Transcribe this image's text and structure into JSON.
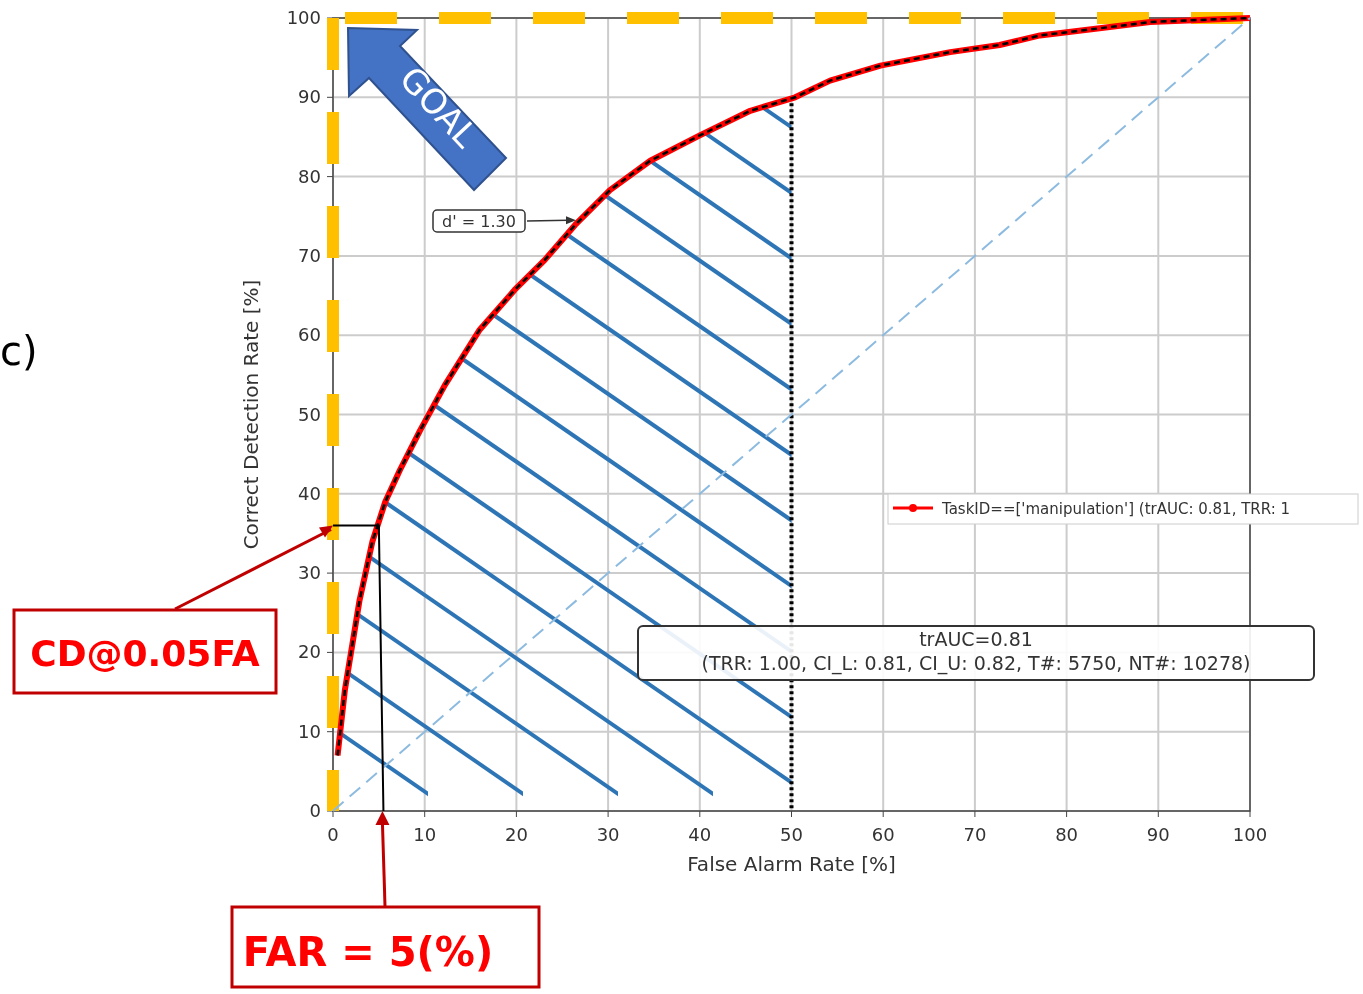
{
  "chart_data": {
    "type": "line",
    "xlabel": "False Alarm Rate [%]",
    "ylabel": "Correct Detection Rate [%]",
    "xlim": [
      0,
      100
    ],
    "ylim": [
      0,
      100
    ],
    "xticks": [
      0,
      10,
      20,
      30,
      40,
      50,
      60,
      70,
      80,
      90,
      100
    ],
    "yticks": [
      0,
      10,
      20,
      30,
      40,
      50,
      60,
      70,
      80,
      90,
      100
    ],
    "grid": true,
    "legend": "right",
    "series": [
      {
        "name": "TaskID==['manipulation'] (trAUC: 0.81, TRR: 1",
        "color": "#ff0000",
        "x": [
          0.5,
          1.3,
          2.9,
          4.3,
          5.7,
          7.3,
          9.5,
          12.2,
          16,
          19.8,
          23.1,
          26.4,
          30.2,
          34.6,
          40,
          45.5,
          50.4,
          54.2,
          59.7,
          67.3,
          72.7,
          77.1,
          83.6,
          89.1,
          100
        ],
        "values": [
          7,
          15.3,
          26.6,
          34,
          39,
          43,
          48,
          53.7,
          60.7,
          65.7,
          69.5,
          73.9,
          78.3,
          82,
          85.2,
          88.3,
          90,
          92.1,
          94,
          95.7,
          96.6,
          97.8,
          98.7,
          99.5,
          100
        ]
      },
      {
        "color": "#000000",
        "line_style": "dashed",
        "x": [
          0.5,
          1.3,
          2.9,
          4.3,
          5.7,
          7.3,
          9.5,
          12.2,
          16,
          19.8,
          23.1,
          26.4,
          30.2,
          34.6,
          40,
          45.5,
          50.4,
          54.2,
          59.7,
          67.3,
          72.7,
          77.1,
          83.6,
          89.1,
          100
        ],
        "values": [
          7,
          15.3,
          26.6,
          34,
          39,
          43,
          48,
          53.7,
          60.7,
          65.7,
          69.5,
          73.9,
          78.3,
          82,
          85.2,
          88.3,
          90,
          92.1,
          94,
          95.7,
          96.6,
          97.8,
          98.7,
          99.5,
          100
        ]
      },
      {
        "color": "#8dbbe0",
        "line_style": "dashed",
        "x": [
          0,
          100
        ],
        "values": [
          0,
          100
        ]
      },
      {
        "color": "#000000",
        "x": [
          0,
          5,
          5.5
        ],
        "values": [
          36,
          36,
          0
        ]
      }
    ],
    "ref_lines": [
      {
        "axis": "x",
        "value": 50,
        "color": "#000000",
        "line_style": "dotted"
      },
      {
        "axis": "x",
        "value": 0,
        "color": "#ffc000",
        "line_style": "dashed"
      },
      {
        "axis": "y",
        "value": 100,
        "color": "#ffc000",
        "line_style": "dashed"
      }
    ],
    "bands": [
      {
        "axis": "x",
        "from": 0,
        "to": 50,
        "color": "#2e75b6"
      }
    ],
    "annotations": [
      "c)",
      "GOAL",
      {
        "text": "d' = 1.30",
        "x": 26.5,
        "y": 74.5
      },
      "trAUC=0.81",
      "(TRR: 1.00, CI_L: 0.81, CI_U: 0.82, T#: 5750, NT#: 10278)",
      {
        "text": "CD@0.05FA",
        "x": 0,
        "y": 36
      },
      {
        "text": "FAR = 5(%)",
        "x": 5.5,
        "y": 0
      }
    ]
  }
}
